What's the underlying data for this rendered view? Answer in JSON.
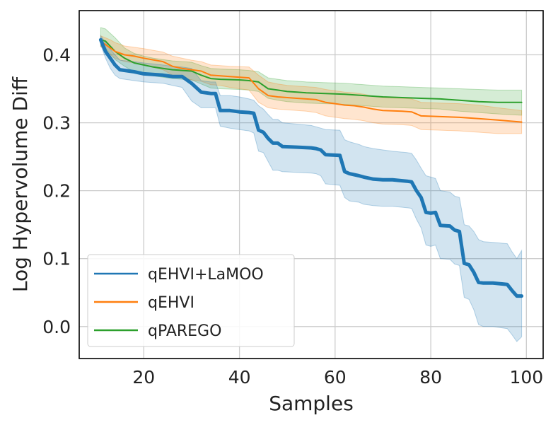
{
  "chart_data": {
    "type": "line",
    "title": "",
    "xlabel": "Samples",
    "ylabel": "Log Hypervolume Diff",
    "xlim": [
      6.5,
      103.5
    ],
    "ylim": [
      -0.047,
      0.465
    ],
    "grid": true,
    "xticks": [
      20,
      40,
      60,
      80,
      100
    ],
    "xtick_labels": [
      "20",
      "40",
      "60",
      "80",
      "100"
    ],
    "yticks": [
      0.0,
      0.1,
      0.2,
      0.3,
      0.4
    ],
    "ytick_labels": [
      "0.0",
      "0.1",
      "0.2",
      "0.3",
      "0.4"
    ],
    "legend": {
      "position": "lower-left"
    },
    "series": [
      {
        "name": "qEHVI+LaMOO",
        "color": "#1f77b4",
        "line_weight": "thick",
        "x": [
          11,
          12,
          13,
          14,
          15,
          18,
          20,
          24,
          26,
          28,
          30,
          32,
          34,
          35,
          36,
          38,
          40,
          42,
          43,
          44,
          45,
          46,
          47,
          48,
          49,
          52,
          55,
          56,
          57,
          58,
          61,
          62,
          63,
          65,
          66,
          68,
          70,
          72,
          75,
          76,
          77,
          78,
          79,
          80,
          81,
          82,
          84,
          85,
          86,
          87,
          88,
          89,
          90,
          91,
          93,
          96,
          97,
          98,
          99
        ],
        "y": [
          0.422,
          0.405,
          0.395,
          0.385,
          0.378,
          0.375,
          0.372,
          0.37,
          0.368,
          0.368,
          0.358,
          0.345,
          0.343,
          0.343,
          0.318,
          0.318,
          0.316,
          0.315,
          0.314,
          0.289,
          0.286,
          0.277,
          0.27,
          0.27,
          0.265,
          0.264,
          0.263,
          0.262,
          0.26,
          0.253,
          0.252,
          0.228,
          0.225,
          0.222,
          0.22,
          0.217,
          0.216,
          0.216,
          0.214,
          0.213,
          0.2,
          0.19,
          0.168,
          0.167,
          0.168,
          0.149,
          0.148,
          0.142,
          0.14,
          0.093,
          0.091,
          0.08,
          0.065,
          0.064,
          0.064,
          0.062,
          0.053,
          0.045,
          0.045
        ],
        "lower": [
          0.415,
          0.395,
          0.38,
          0.37,
          0.365,
          0.362,
          0.36,
          0.358,
          0.355,
          0.352,
          0.332,
          0.322,
          0.322,
          0.322,
          0.295,
          0.292,
          0.29,
          0.288,
          0.285,
          0.258,
          0.256,
          0.243,
          0.23,
          0.23,
          0.228,
          0.227,
          0.226,
          0.225,
          0.222,
          0.21,
          0.208,
          0.19,
          0.185,
          0.183,
          0.18,
          0.178,
          0.177,
          0.177,
          0.175,
          0.174,
          0.158,
          0.145,
          0.12,
          0.118,
          0.12,
          0.1,
          0.099,
          0.092,
          0.09,
          0.043,
          0.04,
          0.025,
          0.003,
          0.0,
          0.0,
          -0.003,
          -0.012,
          -0.022,
          -0.015
        ],
        "upper": [
          0.428,
          0.418,
          0.408,
          0.4,
          0.392,
          0.39,
          0.388,
          0.385,
          0.383,
          0.382,
          0.38,
          0.362,
          0.36,
          0.36,
          0.34,
          0.34,
          0.338,
          0.335,
          0.333,
          0.325,
          0.32,
          0.312,
          0.305,
          0.305,
          0.3,
          0.298,
          0.296,
          0.294,
          0.292,
          0.29,
          0.289,
          0.275,
          0.272,
          0.268,
          0.265,
          0.262,
          0.26,
          0.258,
          0.256,
          0.255,
          0.245,
          0.233,
          0.222,
          0.22,
          0.218,
          0.2,
          0.198,
          0.192,
          0.19,
          0.15,
          0.148,
          0.14,
          0.128,
          0.125,
          0.124,
          0.122,
          0.11,
          0.1,
          0.112
        ]
      },
      {
        "name": "qEHVI",
        "color": "#ff7f0e",
        "line_weight": "normal",
        "x": [
          11,
          13,
          14,
          16,
          18,
          20,
          24,
          26,
          28,
          30,
          32,
          34,
          36,
          38,
          42,
          44,
          46,
          48,
          50,
          52,
          54,
          56,
          58,
          60,
          62,
          64,
          66,
          68,
          70,
          74,
          76,
          78,
          82,
          86,
          90,
          94,
          99
        ],
        "y": [
          0.42,
          0.41,
          0.405,
          0.4,
          0.398,
          0.395,
          0.39,
          0.383,
          0.38,
          0.378,
          0.376,
          0.37,
          0.369,
          0.368,
          0.366,
          0.35,
          0.34,
          0.338,
          0.337,
          0.336,
          0.335,
          0.334,
          0.33,
          0.328,
          0.326,
          0.325,
          0.323,
          0.32,
          0.318,
          0.317,
          0.316,
          0.31,
          0.309,
          0.308,
          0.306,
          0.304,
          0.301
        ],
        "lower": [
          0.412,
          0.4,
          0.395,
          0.39,
          0.388,
          0.385,
          0.378,
          0.37,
          0.366,
          0.363,
          0.361,
          0.356,
          0.355,
          0.352,
          0.348,
          0.33,
          0.322,
          0.32,
          0.319,
          0.318,
          0.317,
          0.315,
          0.31,
          0.308,
          0.306,
          0.305,
          0.303,
          0.3,
          0.298,
          0.297,
          0.296,
          0.29,
          0.289,
          0.288,
          0.286,
          0.284,
          0.284
        ],
        "upper": [
          0.428,
          0.422,
          0.418,
          0.413,
          0.411,
          0.409,
          0.404,
          0.398,
          0.395,
          0.392,
          0.39,
          0.385,
          0.384,
          0.383,
          0.382,
          0.37,
          0.36,
          0.357,
          0.355,
          0.354,
          0.353,
          0.352,
          0.349,
          0.347,
          0.345,
          0.344,
          0.342,
          0.339,
          0.337,
          0.336,
          0.335,
          0.33,
          0.329,
          0.328,
          0.326,
          0.322,
          0.318
        ]
      },
      {
        "name": "qPAREGO",
        "color": "#2ca02c",
        "line_weight": "normal",
        "x": [
          11,
          12,
          14,
          16,
          18,
          20,
          22,
          24,
          26,
          28,
          30,
          32,
          34,
          36,
          40,
          42,
          44,
          46,
          48,
          50,
          52,
          54,
          58,
          62,
          66,
          70,
          74,
          78,
          82,
          86,
          90,
          94,
          99
        ],
        "y": [
          0.422,
          0.42,
          0.405,
          0.395,
          0.388,
          0.385,
          0.382,
          0.38,
          0.378,
          0.377,
          0.376,
          0.37,
          0.365,
          0.364,
          0.363,
          0.362,
          0.36,
          0.35,
          0.348,
          0.346,
          0.345,
          0.344,
          0.343,
          0.342,
          0.34,
          0.338,
          0.337,
          0.336,
          0.335,
          0.333,
          0.331,
          0.33,
          0.33
        ],
        "lower": [
          0.412,
          0.41,
          0.393,
          0.383,
          0.375,
          0.372,
          0.369,
          0.367,
          0.365,
          0.364,
          0.363,
          0.357,
          0.351,
          0.35,
          0.349,
          0.348,
          0.346,
          0.336,
          0.333,
          0.331,
          0.33,
          0.329,
          0.328,
          0.327,
          0.325,
          0.323,
          0.322,
          0.321,
          0.32,
          0.317,
          0.315,
          0.313,
          0.311
        ],
        "upper": [
          0.44,
          0.438,
          0.425,
          0.41,
          0.402,
          0.398,
          0.395,
          0.393,
          0.391,
          0.39,
          0.389,
          0.384,
          0.38,
          0.379,
          0.378,
          0.377,
          0.375,
          0.366,
          0.364,
          0.362,
          0.361,
          0.36,
          0.359,
          0.358,
          0.356,
          0.354,
          0.353,
          0.352,
          0.351,
          0.35,
          0.349,
          0.348,
          0.348
        ]
      }
    ]
  }
}
